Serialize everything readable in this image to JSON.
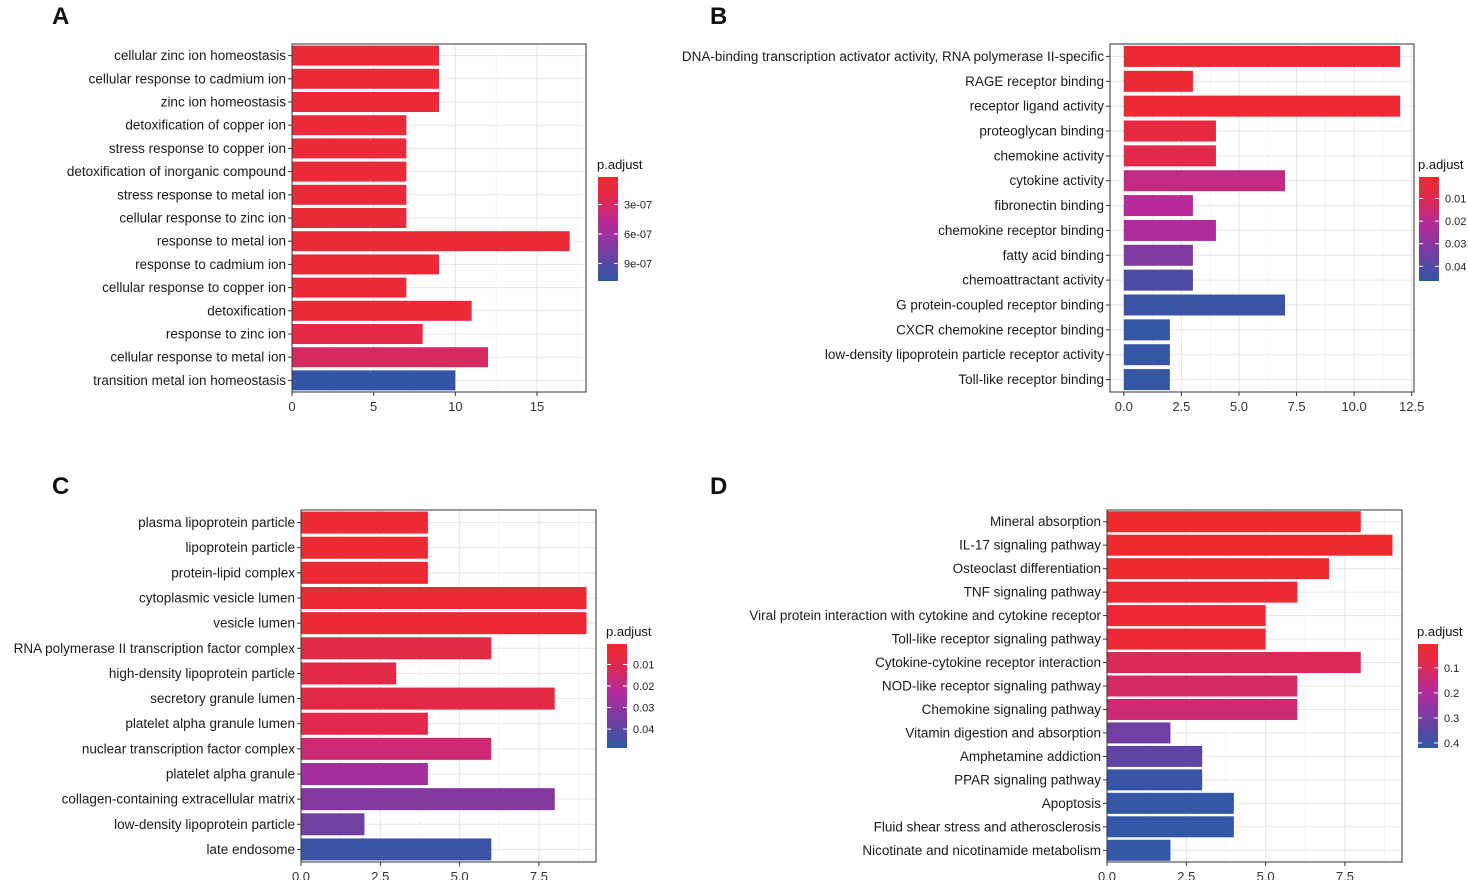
{
  "colors": {
    "high_sig": "#ee2a2e",
    "mid_sig": "#b62a9a",
    "low_sig": "#2d58a6"
  },
  "chart_data": [
    {
      "panel": "A",
      "type": "bar",
      "orientation": "horizontal",
      "categories": [
        "cellular zinc ion homeostasis",
        "cellular response to cadmium ion",
        "zinc ion homeostasis",
        "detoxification of copper ion",
        "stress response to copper ion",
        "detoxification of inorganic compound",
        "stress response to metal ion",
        "cellular response to zinc ion",
        "response to metal ion",
        "response to cadmium ion",
        "cellular response to copper ion",
        "detoxification",
        "response to zinc ion",
        "cellular response to metal ion",
        "transition metal ion homeostasis"
      ],
      "values": [
        9,
        9,
        9,
        7,
        7,
        7,
        7,
        7,
        17,
        9,
        7,
        11,
        8,
        12,
        10
      ],
      "p_adjust": [
        1e-07,
        1e-07,
        1e-07,
        1e-07,
        1e-07,
        1e-07,
        1e-07,
        1e-07,
        1e-07,
        1e-07,
        1e-07,
        1e-07,
        2e-07,
        3e-07,
        1.05e-06
      ],
      "xlim": [
        0,
        18
      ],
      "xticks": [
        0,
        5,
        10,
        15
      ],
      "xtick_labels": [
        "0",
        "5",
        "10",
        "15"
      ],
      "legend": {
        "title": "p.adjust",
        "min": 2e-08,
        "max": 1.08e-06,
        "ticks": [
          3e-07,
          6e-07,
          9e-07
        ],
        "tick_labels": [
          "3e-07",
          "6e-07",
          "9e-07"
        ],
        "position": "right"
      },
      "grid": true
    },
    {
      "panel": "B",
      "type": "bar",
      "orientation": "horizontal",
      "categories": [
        "DNA-binding transcription activator activity, RNA polymerase II-specific",
        "RAGE receptor binding",
        "receptor ligand activity",
        "proteoglycan binding",
        "chemokine activity",
        "cytokine activity",
        "fibronectin binding",
        "chemokine receptor binding",
        "fatty acid binding",
        "chemoattractant activity",
        "G protein-coupled receptor binding",
        "CXCR chemokine receptor binding",
        "low-density lipoprotein particle receptor activity",
        "Toll-like receptor binding"
      ],
      "values": [
        12,
        3,
        12,
        4,
        4,
        7,
        3,
        4,
        3,
        3,
        7,
        2,
        2,
        2
      ],
      "p_adjust": [
        0.0015,
        0.0015,
        0.0015,
        0.0055,
        0.009,
        0.018,
        0.021,
        0.022,
        0.032,
        0.041,
        0.044,
        0.045,
        0.045,
        0.045
      ],
      "xlim": [
        -0.6,
        12.6
      ],
      "xticks": [
        0,
        2.5,
        5,
        7.5,
        10,
        12.5
      ],
      "xtick_labels": [
        "0.0",
        "2.5",
        "5.0",
        "7.5",
        "10.0",
        "12.5"
      ],
      "legend": {
        "title": "p.adjust",
        "min": 0.0005,
        "max": 0.0465,
        "ticks": [
          0.01,
          0.02,
          0.03,
          0.04
        ],
        "tick_labels": [
          "0.01",
          "0.02",
          "0.03",
          "0.04"
        ],
        "position": "right"
      },
      "grid": true
    },
    {
      "panel": "C",
      "type": "bar",
      "orientation": "horizontal",
      "categories": [
        "plasma lipoprotein particle",
        "lipoprotein particle",
        "protein-lipid complex",
        "cytoplasmic vesicle lumen",
        "vesicle lumen",
        "RNA polymerase II transcription factor complex",
        "high-density lipoprotein particle",
        "secretory granule lumen",
        "platelet alpha granule lumen",
        "nuclear transcription factor complex",
        "platelet alpha granule",
        "collagen-containing extracellular matrix",
        "low-density lipoprotein particle",
        "late endosome"
      ],
      "values": [
        4,
        4,
        4,
        9,
        9,
        6,
        3,
        8,
        4,
        6,
        4,
        8,
        2,
        6
      ],
      "p_adjust": [
        0.002,
        0.002,
        0.002,
        0.002,
        0.002,
        0.008,
        0.008,
        0.008,
        0.01,
        0.016,
        0.026,
        0.033,
        0.036,
        0.046
      ],
      "xlim": [
        0,
        9.3
      ],
      "xticks": [
        0,
        2.5,
        5,
        7.5
      ],
      "xtick_labels": [
        "0.0",
        "2.5",
        "5.0",
        "7.5"
      ],
      "legend": {
        "title": "p.adjust",
        "min": 0.0005,
        "max": 0.0488,
        "ticks": [
          0.01,
          0.02,
          0.03,
          0.04
        ],
        "tick_labels": [
          "0.01",
          "0.02",
          "0.03",
          "0.04"
        ],
        "position": "right"
      },
      "grid": true
    },
    {
      "panel": "D",
      "type": "bar",
      "orientation": "horizontal",
      "categories": [
        "Mineral absorption",
        "IL-17 signaling pathway",
        "Osteoclast differentiation",
        "TNF signaling pathway",
        "Viral protein interaction with cytokine and cytokine receptor",
        "Toll-like receptor signaling pathway",
        "Cytokine-cytokine receptor interaction",
        "NOD-like receptor signaling pathway",
        "Chemokine signaling pathway",
        "Vitamin digestion and absorption",
        "Amphetamine addiction",
        "PPAR signaling pathway",
        "Apoptosis",
        "Fluid shear stress and atherosclerosis",
        "Nicotinate and nicotinamide metabolism"
      ],
      "values": [
        8,
        9,
        7,
        6,
        5,
        5,
        8,
        6,
        6,
        2,
        3,
        3,
        4,
        4,
        2
      ],
      "p_adjust": [
        0.01,
        0.01,
        0.01,
        0.02,
        0.025,
        0.025,
        0.1,
        0.12,
        0.14,
        0.31,
        0.34,
        0.4,
        0.41,
        0.41,
        0.41
      ],
      "xlim": [
        0,
        9.3
      ],
      "xticks": [
        0,
        2.5,
        5,
        7.5
      ],
      "xtick_labels": [
        "0.0",
        "2.5",
        "5.0",
        "7.5"
      ],
      "legend": {
        "title": "p.adjust",
        "min": 0.005,
        "max": 0.42,
        "ticks": [
          0.1,
          0.2,
          0.3,
          0.4
        ],
        "tick_labels": [
          "0.1",
          "0.2",
          "0.3",
          "0.4"
        ],
        "position": "right"
      },
      "grid": true
    }
  ]
}
